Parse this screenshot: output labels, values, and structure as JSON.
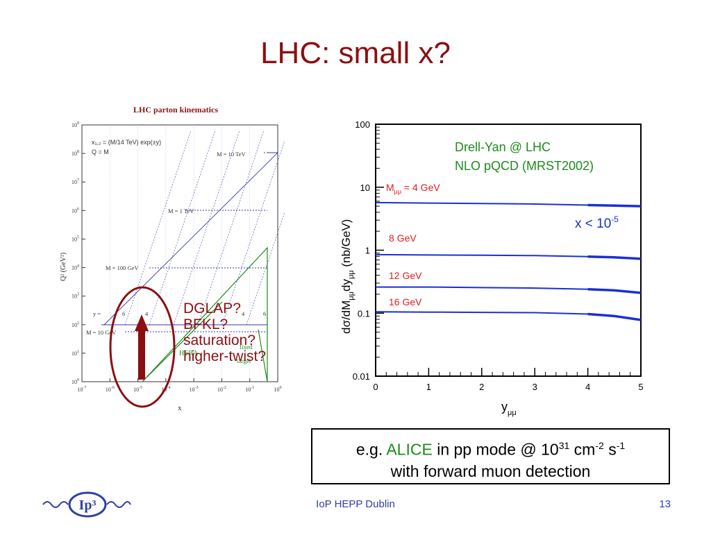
{
  "slide": {
    "title": "LHC: small x?",
    "footer": "IoP HEPP Dublin",
    "page_number": "13"
  },
  "left_plot": {
    "title": "LHC parton kinematics",
    "xlabel": "x",
    "ylabel": "Q² (GeV²)",
    "formula_line1": "x₁,₂ = (M/14 TeV) exp(±y)",
    "formula_line2": "Q = M",
    "x_ticks": [
      "10-7",
      "10-6",
      "10-5",
      "10-4",
      "10-3",
      "10-2",
      "10-1",
      "100"
    ],
    "y_ticks": [
      "100",
      "101",
      "102",
      "103",
      "104",
      "105",
      "106",
      "107",
      "108",
      "109"
    ],
    "mass_labels": [
      "M = 10 TeV",
      "M = 1 TeV",
      "M = 100 GeV",
      "M = 10 GeV"
    ],
    "y_label": "y =",
    "rapidity_labels": [
      "6",
      "4",
      "2",
      "0",
      "2",
      "4",
      "6"
    ],
    "region_labels": [
      "HERA",
      "fixed",
      "target"
    ]
  },
  "annotation": {
    "lines": [
      "DGLAP?",
      "BFKL?",
      "saturation?",
      "higher-twist?"
    ]
  },
  "chart_data": {
    "type": "line",
    "title": "Drell-Yan @ LHC",
    "subtitle": "NLO pQCD (MRST2002)",
    "xlabel": "y_μμ",
    "ylabel": "dσ/dM_μμ dy_μμ (nb/GeV)",
    "xlim": [
      0,
      5
    ],
    "ylim": [
      0.01,
      100
    ],
    "yscale": "log",
    "x_ticks": [
      "0",
      "1",
      "2",
      "3",
      "4",
      "5"
    ],
    "y_ticks": [
      "100",
      "10",
      "1",
      "0.1",
      "0.01"
    ],
    "annotation": "x < 10-5",
    "series_color": "#1a2fd6",
    "series": [
      {
        "name": "Mμμ = 4 GeV",
        "x": [
          0,
          1,
          2,
          3,
          4,
          4.5,
          5
        ],
        "y": [
          5.7,
          5.6,
          5.5,
          5.4,
          5.2,
          5.1,
          5.0
        ]
      },
      {
        "name": "8 GeV",
        "x": [
          0,
          1,
          2,
          3,
          4,
          4.5,
          5
        ],
        "y": [
          0.85,
          0.84,
          0.83,
          0.82,
          0.79,
          0.77,
          0.73
        ]
      },
      {
        "name": "12 GeV",
        "x": [
          0,
          1,
          2,
          3,
          4,
          4.5,
          5
        ],
        "y": [
          0.26,
          0.26,
          0.255,
          0.25,
          0.24,
          0.23,
          0.21
        ]
      },
      {
        "name": "16 GeV",
        "x": [
          0,
          1,
          2,
          3,
          4,
          4.5,
          5
        ],
        "y": [
          0.105,
          0.104,
          0.103,
          0.102,
          0.097,
          0.09,
          0.078
        ]
      }
    ]
  },
  "info": {
    "prefix": "e.g. ",
    "experiment": "ALICE",
    "mid": " in pp mode @ 10",
    "exp31": "31",
    "unit_cm": " cm",
    "exp_minus2": "-2",
    "unit_s": " s",
    "exp_minus1": "-1",
    "line2": "with forward muon detection"
  },
  "logo": {
    "text": "Ip³"
  }
}
